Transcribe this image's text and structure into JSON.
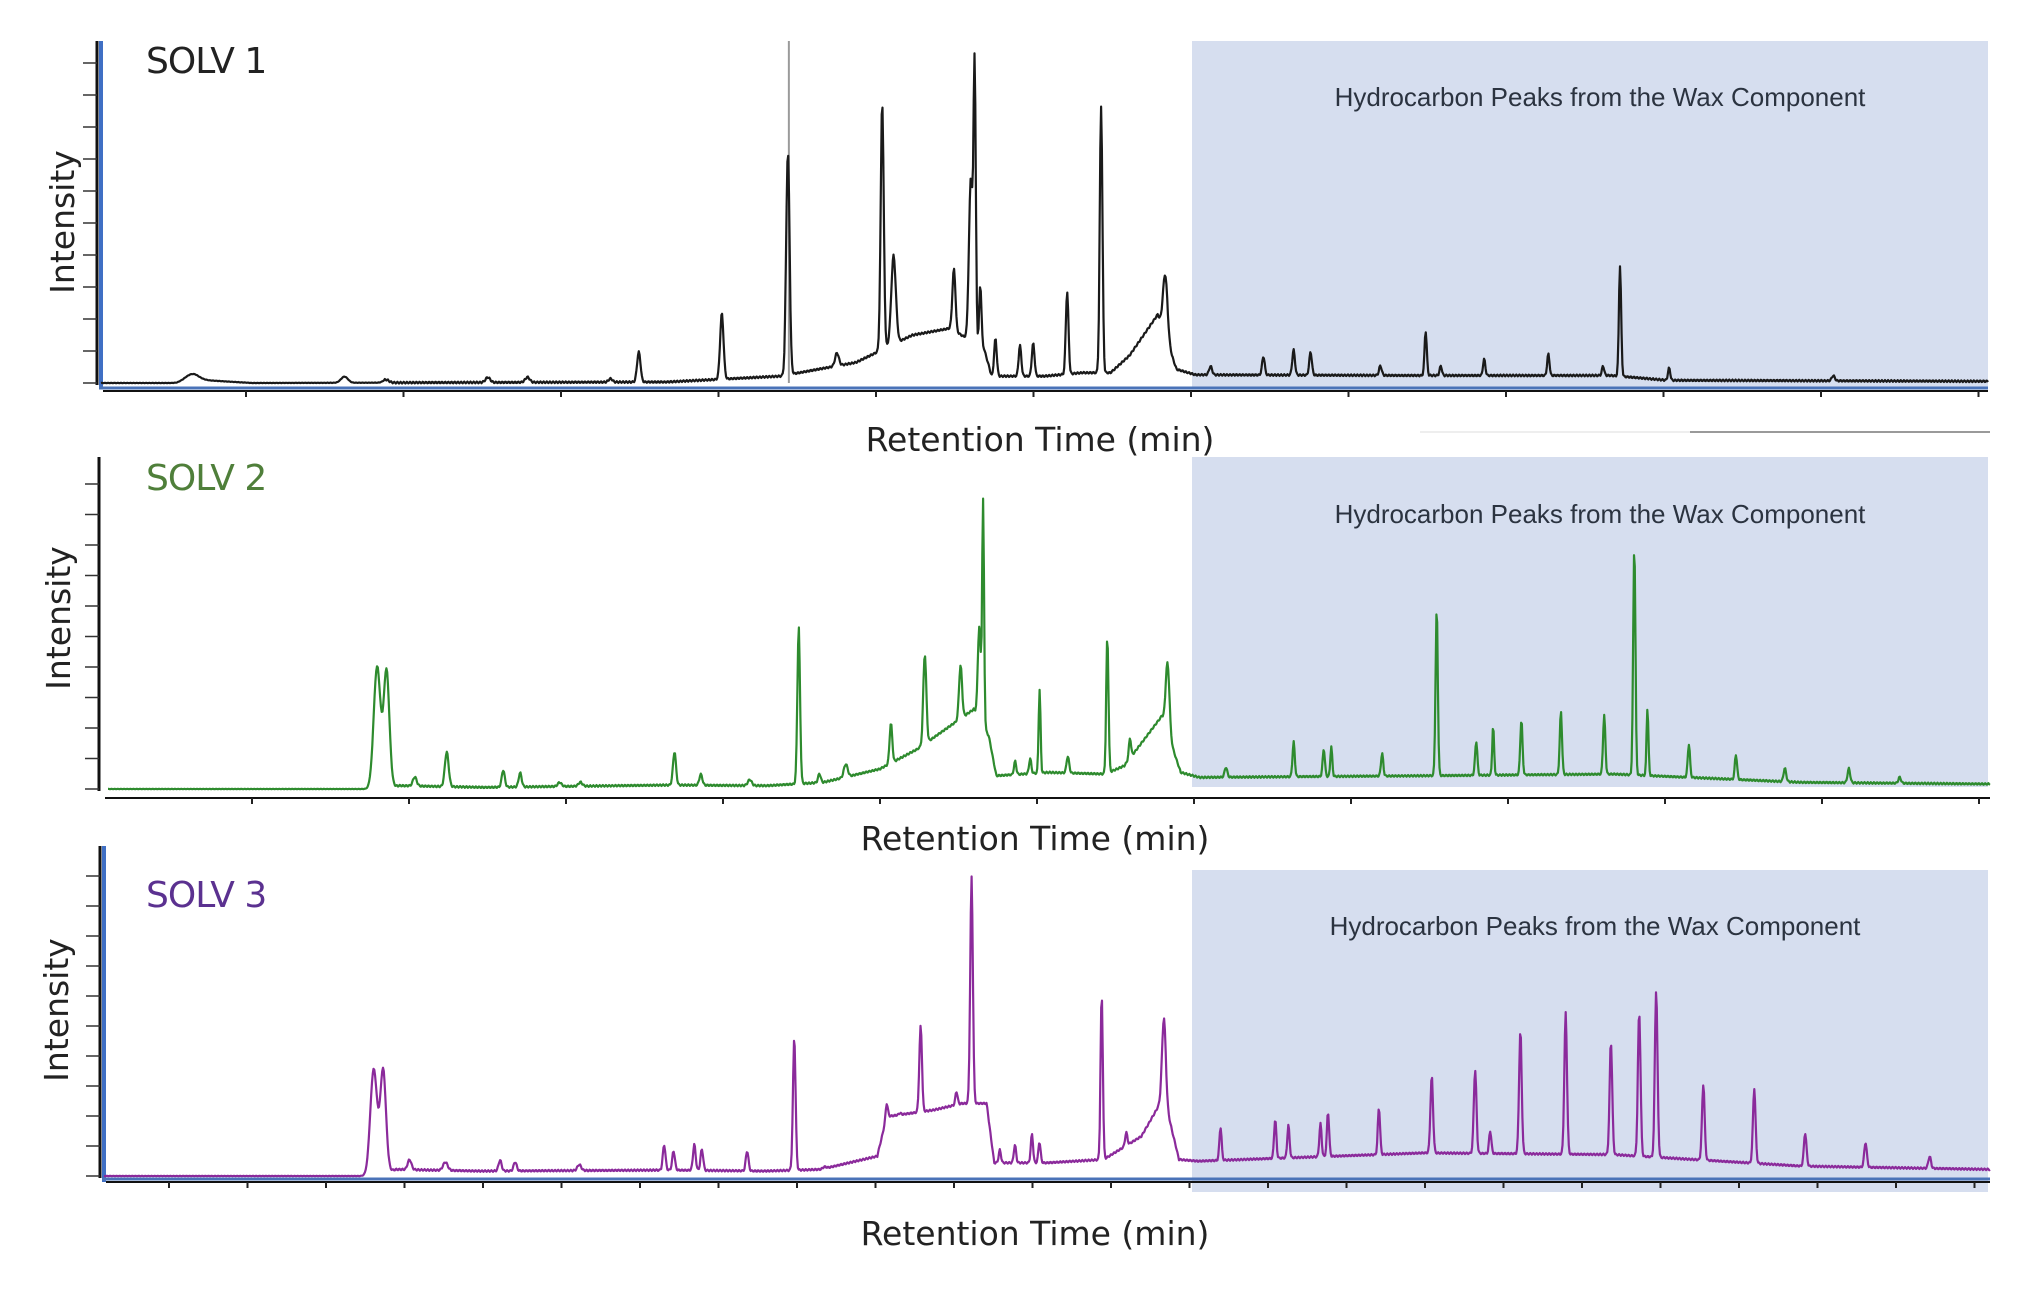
{
  "chart_data": {
    "type": "line",
    "title": "",
    "xlabel": "Retention Time (min)",
    "ylabel": "Intensity",
    "x_units_note": "relative retention (% of run)",
    "y_units_note": "relative intensity (% of axis)",
    "xlim": [
      0,
      100
    ],
    "ylim": [
      0,
      100
    ],
    "grid": false,
    "x_tick_count": 12,
    "y_tick_count": 11,
    "highlight_region": {
      "label": "Hydrocarbon Peaks from the Wax Component",
      "x_start": 58,
      "x_end": 100,
      "color": "#d6deef"
    },
    "panels": [
      {
        "name": "SOLV 1",
        "color": "#1a1a1a",
        "label_color": "#222222",
        "baseline": [
          [
            0,
            0
          ],
          [
            4,
            0
          ],
          [
            5,
            1
          ],
          [
            8,
            0
          ],
          [
            30,
            0.3
          ],
          [
            36,
            2
          ],
          [
            40,
            6
          ],
          [
            43,
            14
          ],
          [
            45,
            16
          ],
          [
            46.8,
            10
          ],
          [
            47.2,
            2
          ],
          [
            50,
            2
          ],
          [
            52,
            3
          ],
          [
            53.5,
            3
          ],
          [
            54.5,
            8
          ],
          [
            56,
            20
          ],
          [
            57,
            4
          ],
          [
            58,
            2.4
          ],
          [
            70,
            2.2
          ],
          [
            80,
            2.2
          ],
          [
            83,
            0.8
          ],
          [
            100,
            0.5
          ]
        ],
        "peaks": [
          [
            4.8,
            1.8,
            0.35
          ],
          [
            12.9,
            1.8,
            0.18
          ],
          [
            15.1,
            0.9,
            0.15
          ],
          [
            20.5,
            1.5,
            0.12
          ],
          [
            22.6,
            1.5,
            0.12
          ],
          [
            27.0,
            1.0,
            0.1
          ],
          [
            28.5,
            8.8,
            0.09
          ],
          [
            32.9,
            19.3,
            0.09
          ],
          [
            36.4,
            64.9,
            0.09
          ],
          [
            39.0,
            3.8,
            0.1
          ],
          [
            41.4,
            72.5,
            0.08
          ],
          [
            42.0,
            26,
            0.12
          ],
          [
            45.2,
            18,
            0.08
          ],
          [
            46.1,
            48,
            0.1
          ],
          [
            46.3,
            78,
            0.06
          ],
          [
            46.6,
            18,
            0.06
          ],
          [
            47.4,
            11,
            0.07
          ],
          [
            48.7,
            9,
            0.07
          ],
          [
            49.4,
            9.6,
            0.07
          ],
          [
            51.2,
            24,
            0.07
          ],
          [
            53.0,
            78,
            0.07
          ],
          [
            56.4,
            18,
            0.12
          ],
          [
            58.8,
            2.5,
            0.08
          ],
          [
            61.6,
            5.4,
            0.07
          ],
          [
            63.2,
            7.4,
            0.07
          ],
          [
            64.1,
            6.8,
            0.07
          ],
          [
            67.8,
            2.8,
            0.07
          ],
          [
            70.2,
            13,
            0.06
          ],
          [
            71.0,
            2.8,
            0.06
          ],
          [
            73.3,
            4.8,
            0.06
          ],
          [
            76.7,
            6.3,
            0.06
          ],
          [
            79.6,
            2.8,
            0.06
          ],
          [
            80.5,
            32.3,
            0.06
          ],
          [
            83.1,
            3.6,
            0.06
          ],
          [
            91.8,
            1.5,
            0.08
          ]
        ],
        "marker_line_x": 36.4
      },
      {
        "name": "SOLV 2",
        "color": "#2e8b2e",
        "label_color": "#4f7f3a",
        "baseline": [
          [
            0,
            0
          ],
          [
            14,
            0
          ],
          [
            15.5,
            1
          ],
          [
            20,
            0.5
          ],
          [
            30,
            1.2
          ],
          [
            35,
            1
          ],
          [
            38,
            2
          ],
          [
            41,
            6
          ],
          [
            43,
            12
          ],
          [
            45,
            20
          ],
          [
            46,
            24
          ],
          [
            46.8,
            16
          ],
          [
            47.2,
            4
          ],
          [
            50,
            5
          ],
          [
            53,
            4.5
          ],
          [
            54,
            7
          ],
          [
            56,
            22
          ],
          [
            57,
            5
          ],
          [
            58,
            3.5
          ],
          [
            70,
            4
          ],
          [
            80,
            4.5
          ],
          [
            90,
            2
          ],
          [
            100,
            1.5
          ]
        ],
        "peaks": [
          [
            14.3,
            36.7,
            0.18
          ],
          [
            14.8,
            35,
            0.15
          ],
          [
            16.3,
            2.7,
            0.1
          ],
          [
            18.0,
            10.5,
            0.1
          ],
          [
            21.0,
            5.1,
            0.08
          ],
          [
            21.9,
            4.2,
            0.08
          ],
          [
            24.0,
            1.2,
            0.1
          ],
          [
            25.1,
            1.2,
            0.1
          ],
          [
            30.1,
            10,
            0.08
          ],
          [
            31.5,
            3.3,
            0.08
          ],
          [
            34.1,
            1.8,
            0.1
          ],
          [
            36.7,
            47.3,
            0.07
          ],
          [
            37.8,
            2.7,
            0.07
          ],
          [
            39.2,
            3.9,
            0.1
          ],
          [
            41.6,
            12,
            0.07
          ],
          [
            43.4,
            27,
            0.08
          ],
          [
            45.3,
            16,
            0.08
          ],
          [
            46.3,
            28,
            0.08
          ],
          [
            46.5,
            67,
            0.05
          ],
          [
            48.2,
            4,
            0.06
          ],
          [
            49.0,
            4.5,
            0.06
          ],
          [
            49.5,
            25,
            0.05
          ],
          [
            51.0,
            5,
            0.07
          ],
          [
            53.1,
            41,
            0.06
          ],
          [
            54.3,
            6,
            0.06
          ],
          [
            56.3,
            21,
            0.1
          ],
          [
            59.4,
            3,
            0.07
          ],
          [
            63.0,
            10.5,
            0.06
          ],
          [
            64.6,
            8.3,
            0.06
          ],
          [
            65.0,
            9,
            0.05
          ],
          [
            67.7,
            6.8,
            0.06
          ],
          [
            70.6,
            50.2,
            0.06
          ],
          [
            72.7,
            10.2,
            0.06
          ],
          [
            73.6,
            14.7,
            0.05
          ],
          [
            75.1,
            16.5,
            0.06
          ],
          [
            77.2,
            19,
            0.06
          ],
          [
            79.5,
            17.7,
            0.06
          ],
          [
            81.1,
            68.8,
            0.06
          ],
          [
            81.8,
            20.3,
            0.05
          ],
          [
            84.0,
            10,
            0.06
          ],
          [
            86.5,
            7.5,
            0.06
          ],
          [
            89.1,
            4,
            0.07
          ],
          [
            92.5,
            4.3,
            0.07
          ],
          [
            95.2,
            1.8,
            0.07
          ]
        ]
      },
      {
        "name": "SOLV 3",
        "color": "#8b2a9b",
        "label_color": "#5b3190",
        "baseline": [
          [
            0,
            0
          ],
          [
            14,
            0
          ],
          [
            15.5,
            2
          ],
          [
            20,
            1.5
          ],
          [
            30,
            1.8
          ],
          [
            35,
            1.5
          ],
          [
            38,
            2
          ],
          [
            41,
            6
          ],
          [
            41.5,
            18
          ],
          [
            44,
            20
          ],
          [
            45.5,
            22
          ],
          [
            46.8,
            22
          ],
          [
            47.2,
            4
          ],
          [
            50,
            4
          ],
          [
            53,
            5
          ],
          [
            55,
            12
          ],
          [
            56.2,
            24
          ],
          [
            57,
            5
          ],
          [
            58,
            4.5
          ],
          [
            70,
            7
          ],
          [
            80,
            6.5
          ],
          [
            90,
            3
          ],
          [
            100,
            2
          ]
        ],
        "peaks": [
          [
            14.3,
            32,
            0.18
          ],
          [
            14.8,
            31,
            0.15
          ],
          [
            16.2,
            3,
            0.1
          ],
          [
            18.1,
            2.5,
            0.12
          ],
          [
            21.0,
            3.3,
            0.08
          ],
          [
            21.8,
            2.7,
            0.08
          ],
          [
            25.2,
            1.8,
            0.1
          ],
          [
            29.7,
            7.6,
            0.07
          ],
          [
            30.2,
            5.8,
            0.07
          ],
          [
            31.3,
            7.9,
            0.07
          ],
          [
            31.7,
            6.4,
            0.07
          ],
          [
            34.1,
            6,
            0.07
          ],
          [
            36.6,
            40.3,
            0.07
          ],
          [
            38.2,
            0.5,
            0.1
          ],
          [
            41.5,
            4,
            0.06
          ],
          [
            42.2,
            0.5,
            0.06
          ],
          [
            43.3,
            26,
            0.07
          ],
          [
            45.2,
            4,
            0.06
          ],
          [
            46.0,
            68.6,
            0.07
          ],
          [
            47.5,
            3.9,
            0.06
          ],
          [
            48.3,
            5.4,
            0.06
          ],
          [
            49.2,
            8.7,
            0.06
          ],
          [
            49.6,
            6.3,
            0.06
          ],
          [
            52.9,
            50,
            0.06
          ],
          [
            54.2,
            4,
            0.06
          ],
          [
            56.2,
            24,
            0.1
          ],
          [
            59.2,
            10,
            0.06
          ],
          [
            62.1,
            11.8,
            0.06
          ],
          [
            62.8,
            10,
            0.06
          ],
          [
            64.5,
            10,
            0.06
          ],
          [
            64.9,
            13.4,
            0.06
          ],
          [
            67.6,
            14.2,
            0.06
          ],
          [
            70.4,
            23.2,
            0.07
          ],
          [
            72.7,
            25.2,
            0.07
          ],
          [
            73.5,
            6.8,
            0.06
          ],
          [
            75.1,
            37.2,
            0.07
          ],
          [
            77.5,
            42.9,
            0.07
          ],
          [
            79.9,
            34.2,
            0.07
          ],
          [
            81.4,
            43.7,
            0.07
          ],
          [
            82.3,
            50.5,
            0.07
          ],
          [
            84.8,
            23,
            0.07
          ],
          [
            87.5,
            22.7,
            0.07
          ],
          [
            90.2,
            10,
            0.07
          ],
          [
            93.4,
            7.5,
            0.07
          ],
          [
            96.8,
            3.6,
            0.07
          ]
        ]
      }
    ]
  },
  "panel_labels": [
    "SOLV 1",
    "SOLV 2",
    "SOLV 3"
  ],
  "x_axis_title": "Retention Time (min)",
  "y_axis_title": "Intensity",
  "region_label": "Hydrocarbon Peaks from the Wax Component"
}
